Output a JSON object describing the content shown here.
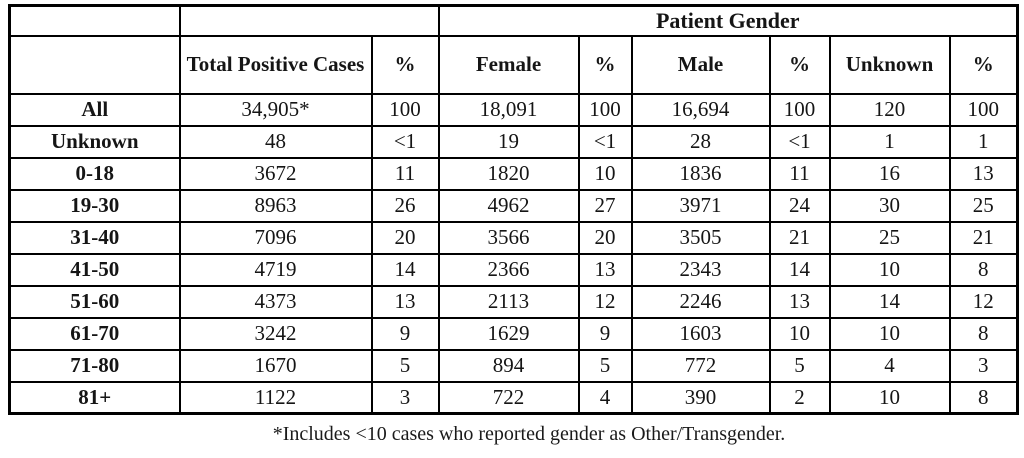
{
  "table": {
    "group_title": "Patient Gender",
    "columns": [
      "Total Positive Cases",
      "%",
      "Female",
      "%",
      "Male",
      "%",
      "Unknown",
      "%"
    ],
    "rows": [
      {
        "label": "All",
        "values": [
          "34,905*",
          "100",
          "18,091",
          "100",
          "16,694",
          "100",
          "120",
          "100"
        ]
      },
      {
        "label": "Unknown",
        "values": [
          "48",
          "<1",
          "19",
          "<1",
          "28",
          "<1",
          "1",
          "1"
        ]
      },
      {
        "label": "0-18",
        "values": [
          "3672",
          "11",
          "1820",
          "10",
          "1836",
          "11",
          "16",
          "13"
        ]
      },
      {
        "label": "19-30",
        "values": [
          "8963",
          "26",
          "4962",
          "27",
          "3971",
          "24",
          "30",
          "25"
        ]
      },
      {
        "label": "31-40",
        "values": [
          "7096",
          "20",
          "3566",
          "20",
          "3505",
          "21",
          "25",
          "21"
        ]
      },
      {
        "label": "41-50",
        "values": [
          "4719",
          "14",
          "2366",
          "13",
          "2343",
          "14",
          "10",
          "8"
        ]
      },
      {
        "label": "51-60",
        "values": [
          "4373",
          "13",
          "2113",
          "12",
          "2246",
          "13",
          "14",
          "12"
        ]
      },
      {
        "label": "61-70",
        "values": [
          "3242",
          "9",
          "1629",
          "9",
          "1603",
          "10",
          "10",
          "8"
        ]
      },
      {
        "label": "71-80",
        "values": [
          "1670",
          "5",
          "894",
          "5",
          "772",
          "5",
          "4",
          "3"
        ]
      },
      {
        "label": "81+",
        "values": [
          "1122",
          "3",
          "722",
          "4",
          "390",
          "2",
          "10",
          "8"
        ]
      }
    ]
  },
  "footnote": "*Includes <10 cases who reported gender as Other/Transgender.",
  "colors": {
    "border": "#000000",
    "text": "#151515",
    "background": "#ffffff"
  }
}
